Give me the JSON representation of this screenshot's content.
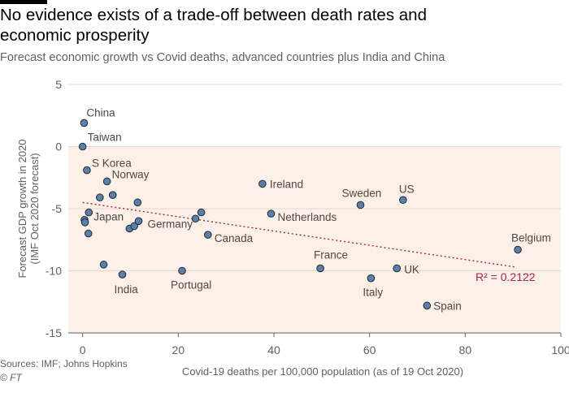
{
  "title": "No evidence exists of a trade-off between death rates and economic prosperity",
  "subtitle": "Forecast economic growth vs Covid deaths, advanced countries plus India and China",
  "source": "Sources: IMF; Johns Hopkins",
  "copyright": "© FT",
  "chart_data": {
    "type": "scatter",
    "xlabel": "Covid-19 deaths per 100,000 population (as of 19 Oct 2020)",
    "ylabel_line1": "Forecast GDP growth in 2020",
    "ylabel_line2": "(IMF Oct 2020 forecast)",
    "xlim": [
      -3,
      100
    ],
    "ylim": [
      -15,
      5
    ],
    "xticks": [
      0,
      20,
      40,
      60,
      80,
      100
    ],
    "yticks": [
      5,
      0,
      -5,
      -10,
      -15
    ],
    "shaded_region": "y < 0",
    "grid": "horizontal",
    "trendline": {
      "x1": 0,
      "y1": -4.5,
      "x2": 90.5,
      "y2": -9.7,
      "label": "R² = 0.2122"
    },
    "points": [
      {
        "label": "China",
        "x": 0.3,
        "y": 1.9
      },
      {
        "label": "Taiwan",
        "x": 0.0,
        "y": 0.0
      },
      {
        "label": "S Korea",
        "x": 0.9,
        "y": -1.9
      },
      {
        "label": "Norway",
        "x": 5.1,
        "y": -2.8
      },
      {
        "label": "Japan",
        "x": 1.3,
        "y": -5.3
      },
      {
        "label": "",
        "x": 0.4,
        "y": -5.9
      },
      {
        "label": "",
        "x": 0.5,
        "y": -6.1
      },
      {
        "label": "",
        "x": 1.2,
        "y": -7.0
      },
      {
        "label": "",
        "x": 3.6,
        "y": -4.1
      },
      {
        "label": "",
        "x": 6.3,
        "y": -3.9
      },
      {
        "label": "",
        "x": 11.5,
        "y": -4.5
      },
      {
        "label": "",
        "x": 4.4,
        "y": -9.5
      },
      {
        "label": "India",
        "x": 8.3,
        "y": -10.3
      },
      {
        "label": "",
        "x": 9.8,
        "y": -6.6
      },
      {
        "label": "",
        "x": 10.8,
        "y": -6.4
      },
      {
        "label": "Germany",
        "x": 11.7,
        "y": -6.0
      },
      {
        "label": "Portugal",
        "x": 20.8,
        "y": -10.0
      },
      {
        "label": "",
        "x": 23.6,
        "y": -5.8
      },
      {
        "label": "",
        "x": 24.8,
        "y": -5.3
      },
      {
        "label": "Canada",
        "x": 26.2,
        "y": -7.1
      },
      {
        "label": "Ireland",
        "x": 37.6,
        "y": -3.0
      },
      {
        "label": "Netherlands",
        "x": 39.4,
        "y": -5.4
      },
      {
        "label": "France",
        "x": 49.7,
        "y": -9.8
      },
      {
        "label": "Sweden",
        "x": 58.1,
        "y": -4.7
      },
      {
        "label": "Italy",
        "x": 60.3,
        "y": -10.6
      },
      {
        "label": "UK",
        "x": 65.7,
        "y": -9.8
      },
      {
        "label": "US",
        "x": 67.0,
        "y": -4.3
      },
      {
        "label": "Spain",
        "x": 72.0,
        "y": -12.8
      },
      {
        "label": "Belgium",
        "x": 91.0,
        "y": -8.3
      }
    ]
  },
  "colors": {
    "background_shade": "#fdf0e6",
    "dot_fill": "#5c7fa6",
    "dot_stroke": "#1a2b3d",
    "trendline": "#a3264f",
    "grid": "#e6d9ce"
  }
}
